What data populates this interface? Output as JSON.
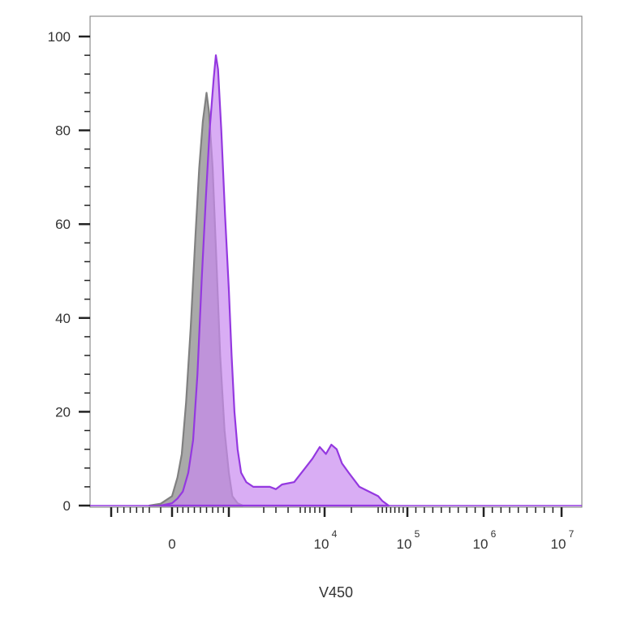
{
  "chart_data": {
    "type": "area",
    "xlabel": "V450",
    "ylabel": "",
    "ylim": [
      0,
      105
    ],
    "x_scale": "biexponential",
    "yticks": [
      "0",
      "20",
      "40",
      "60",
      "80",
      "100"
    ],
    "xticks": [
      {
        "base": "0",
        "exp": ""
      },
      {
        "base": "10",
        "exp": "4"
      },
      {
        "base": "10",
        "exp": "5"
      },
      {
        "base": "10",
        "exp": "6"
      },
      {
        "base": "10",
        "exp": "7"
      }
    ],
    "series": [
      {
        "color": "#808080",
        "fill": "#9a9a9a",
        "points": [
          [
            -200,
            0
          ],
          [
            -100,
            0.4
          ],
          [
            0,
            2
          ],
          [
            100,
            6
          ],
          [
            180,
            11
          ],
          [
            260,
            22
          ],
          [
            340,
            38
          ],
          [
            420,
            58
          ],
          [
            480,
            72
          ],
          [
            540,
            82
          ],
          [
            600,
            88
          ],
          [
            640,
            84
          ],
          [
            700,
            72
          ],
          [
            770,
            52
          ],
          [
            840,
            32
          ],
          [
            920,
            16
          ],
          [
            1000,
            7
          ],
          [
            1100,
            2
          ],
          [
            1250,
            0.5
          ],
          [
            1400,
            0
          ]
        ]
      },
      {
        "color": "#9438e0",
        "fill": "#c98af0",
        "points": [
          [
            -100,
            0
          ],
          [
            0,
            0.5
          ],
          [
            100,
            1.5
          ],
          [
            200,
            3
          ],
          [
            300,
            7
          ],
          [
            380,
            14
          ],
          [
            450,
            28
          ],
          [
            520,
            48
          ],
          [
            590,
            66
          ],
          [
            650,
            80
          ],
          [
            720,
            91
          ],
          [
            760,
            96
          ],
          [
            800,
            93
          ],
          [
            860,
            80
          ],
          [
            930,
            62
          ],
          [
            1000,
            46
          ],
          [
            1080,
            32
          ],
          [
            1160,
            20
          ],
          [
            1250,
            12
          ],
          [
            1350,
            7
          ],
          [
            1500,
            5
          ],
          [
            1700,
            4
          ],
          [
            2000,
            4
          ],
          [
            2500,
            4
          ],
          [
            3000,
            3.5
          ],
          [
            3500,
            4.5
          ],
          [
            4500,
            5
          ],
          [
            6000,
            8
          ],
          [
            7500,
            10
          ],
          [
            9000,
            12.5
          ],
          [
            10500,
            11
          ],
          [
            12500,
            13
          ],
          [
            14500,
            12
          ],
          [
            16500,
            9
          ],
          [
            19000,
            7
          ],
          [
            23000,
            4
          ],
          [
            30000,
            2
          ],
          [
            40000,
            1
          ],
          [
            55000,
            0
          ]
        ]
      }
    ]
  }
}
